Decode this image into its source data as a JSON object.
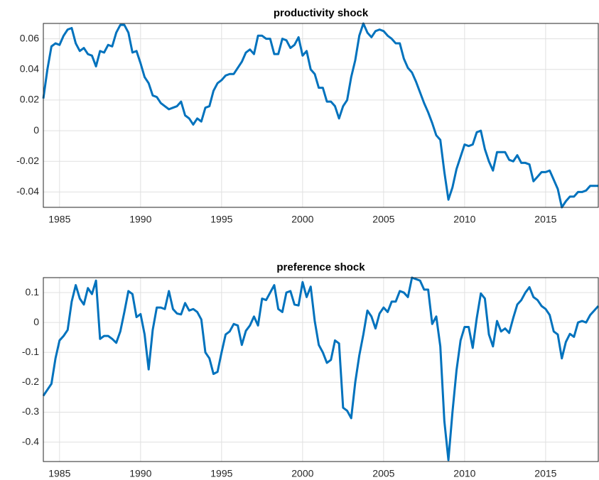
{
  "chart_data": [
    {
      "type": "line",
      "title": "productivity shock",
      "grid": true,
      "xlim": [
        1984,
        2018.25
      ],
      "xticks": [
        1985,
        1990,
        1995,
        2000,
        2005,
        2010,
        2015
      ],
      "ylim": [
        -0.05,
        0.07
      ],
      "yticks": [
        -0.04,
        -0.02,
        0,
        0.02,
        0.04,
        0.06
      ],
      "x": [
        1984,
        1984.25,
        1984.5,
        1984.75,
        1985,
        1985.25,
        1985.5,
        1985.75,
        1986,
        1986.25,
        1986.5,
        1986.75,
        1987,
        1987.25,
        1987.5,
        1987.75,
        1988,
        1988.25,
        1988.5,
        1988.75,
        1989,
        1989.25,
        1989.5,
        1989.75,
        1990,
        1990.25,
        1990.5,
        1990.75,
        1991,
        1991.25,
        1991.5,
        1991.75,
        1992,
        1992.25,
        1992.5,
        1992.75,
        1993,
        1993.25,
        1993.5,
        1993.75,
        1994,
        1994.25,
        1994.5,
        1994.75,
        1995,
        1995.25,
        1995.5,
        1995.75,
        1996,
        1996.25,
        1996.5,
        1996.75,
        1997,
        1997.25,
        1997.5,
        1997.75,
        1998,
        1998.25,
        1998.5,
        1998.75,
        1999,
        1999.25,
        1999.5,
        1999.75,
        2000,
        2000.25,
        2000.5,
        2000.75,
        2001,
        2001.25,
        2001.5,
        2001.75,
        2002,
        2002.25,
        2002.5,
        2002.75,
        2003,
        2003.25,
        2003.5,
        2003.75,
        2004,
        2004.25,
        2004.5,
        2004.75,
        2005,
        2005.25,
        2005.5,
        2005.75,
        2006,
        2006.25,
        2006.5,
        2006.75,
        2007,
        2007.25,
        2007.5,
        2007.75,
        2008,
        2008.25,
        2008.5,
        2008.75,
        2009,
        2009.25,
        2009.5,
        2009.75,
        2010,
        2010.25,
        2010.5,
        2010.75,
        2011,
        2011.25,
        2011.5,
        2011.75,
        2012,
        2012.25,
        2012.5,
        2012.75,
        2013,
        2013.25,
        2013.5,
        2013.75,
        2014,
        2014.25,
        2014.5,
        2014.75,
        2015,
        2015.25,
        2015.5,
        2015.75,
        2016,
        2016.25,
        2016.5,
        2016.75,
        2017,
        2017.25,
        2017.5,
        2017.75,
        2018,
        2018.25
      ],
      "series": [
        {
          "color": "#0072bd",
          "values": [
            0.021,
            0.04,
            0.055,
            0.057,
            0.056,
            0.062,
            0.066,
            0.067,
            0.057,
            0.052,
            0.054,
            0.05,
            0.049,
            0.042,
            0.052,
            0.051,
            0.056,
            0.055,
            0.064,
            0.069,
            0.069,
            0.064,
            0.051,
            0.052,
            0.044,
            0.035,
            0.031,
            0.023,
            0.022,
            0.018,
            0.016,
            0.014,
            0.015,
            0.016,
            0.019,
            0.01,
            0.008,
            0.004,
            0.008,
            0.006,
            0.015,
            0.016,
            0.026,
            0.031,
            0.033,
            0.036,
            0.037,
            0.037,
            0.041,
            0.045,
            0.051,
            0.053,
            0.05,
            0.062,
            0.062,
            0.06,
            0.06,
            0.05,
            0.05,
            0.06,
            0.059,
            0.054,
            0.056,
            0.061,
            0.049,
            0.052,
            0.04,
            0.037,
            0.028,
            0.028,
            0.019,
            0.019,
            0.016,
            0.008,
            0.016,
            0.02,
            0.035,
            0.046,
            0.062,
            0.07,
            0.064,
            0.061,
            0.065,
            0.066,
            0.065,
            0.062,
            0.06,
            0.057,
            0.057,
            0.047,
            0.041,
            0.038,
            0.032,
            0.025,
            0.018,
            0.012,
            0.005,
            -0.003,
            -0.006,
            -0.027,
            -0.045,
            -0.037,
            -0.025,
            -0.017,
            -0.009,
            -0.01,
            -0.009,
            -0.001,
            0.0,
            -0.012,
            -0.02,
            -0.026,
            -0.014,
            -0.014,
            -0.014,
            -0.019,
            -0.02,
            -0.016,
            -0.021,
            -0.021,
            -0.022,
            -0.033,
            -0.03,
            -0.027,
            -0.027,
            -0.026,
            -0.032,
            -0.038,
            -0.05,
            -0.046,
            -0.043,
            -0.043,
            -0.04,
            -0.04,
            -0.039,
            -0.036,
            -0.036,
            -0.036
          ]
        }
      ]
    },
    {
      "type": "line",
      "title": "preference shock",
      "grid": true,
      "xlim": [
        1984,
        2018.25
      ],
      "xticks": [
        1985,
        1990,
        1995,
        2000,
        2005,
        2010,
        2015
      ],
      "ylim": [
        -0.465,
        0.15
      ],
      "yticks": [
        -0.4,
        -0.3,
        -0.2,
        -0.1,
        0,
        0.1
      ],
      "x": [
        1984,
        1984.25,
        1984.5,
        1984.75,
        1985,
        1985.25,
        1985.5,
        1985.75,
        1986,
        1986.25,
        1986.5,
        1986.75,
        1987,
        1987.25,
        1987.5,
        1987.75,
        1988,
        1988.25,
        1988.5,
        1988.75,
        1989,
        1989.25,
        1989.5,
        1989.75,
        1990,
        1990.25,
        1990.5,
        1990.75,
        1991,
        1991.25,
        1991.5,
        1991.75,
        1992,
        1992.25,
        1992.5,
        1992.75,
        1993,
        1993.25,
        1993.5,
        1993.75,
        1994,
        1994.25,
        1994.5,
        1994.75,
        1995,
        1995.25,
        1995.5,
        1995.75,
        1996,
        1996.25,
        1996.5,
        1996.75,
        1997,
        1997.25,
        1997.5,
        1997.75,
        1998,
        1998.25,
        1998.5,
        1998.75,
        1999,
        1999.25,
        1999.5,
        1999.75,
        2000,
        2000.25,
        2000.5,
        2000.75,
        2001,
        2001.25,
        2001.5,
        2001.75,
        2002,
        2002.25,
        2002.5,
        2002.75,
        2003,
        2003.25,
        2003.5,
        2003.75,
        2004,
        2004.25,
        2004.5,
        2004.75,
        2005,
        2005.25,
        2005.5,
        2005.75,
        2006,
        2006.25,
        2006.5,
        2006.75,
        2007,
        2007.25,
        2007.5,
        2007.75,
        2008,
        2008.25,
        2008.5,
        2008.75,
        2009,
        2009.25,
        2009.5,
        2009.75,
        2010,
        2010.25,
        2010.5,
        2010.75,
        2011,
        2011.25,
        2011.5,
        2011.75,
        2012,
        2012.25,
        2012.5,
        2012.75,
        2013,
        2013.25,
        2013.5,
        2013.75,
        2014,
        2014.25,
        2014.5,
        2014.75,
        2015,
        2015.25,
        2015.5,
        2015.75,
        2016,
        2016.25,
        2016.5,
        2016.75,
        2017,
        2017.25,
        2017.5,
        2017.75,
        2018,
        2018.25
      ],
      "series": [
        {
          "color": "#0072bd",
          "values": [
            -0.245,
            -0.225,
            -0.205,
            -0.12,
            -0.06,
            -0.045,
            -0.025,
            0.07,
            0.125,
            0.08,
            0.06,
            0.115,
            0.095,
            0.14,
            -0.055,
            -0.045,
            -0.045,
            -0.055,
            -0.068,
            -0.03,
            0.035,
            0.105,
            0.095,
            0.018,
            0.028,
            -0.04,
            -0.157,
            -0.025,
            0.05,
            0.05,
            0.045,
            0.105,
            0.045,
            0.03,
            0.027,
            0.065,
            0.04,
            0.045,
            0.035,
            0.01,
            -0.1,
            -0.12,
            -0.172,
            -0.165,
            -0.1,
            -0.04,
            -0.03,
            -0.005,
            -0.01,
            -0.075,
            -0.028,
            -0.01,
            0.02,
            -0.01,
            0.08,
            0.075,
            0.1,
            0.125,
            0.045,
            0.035,
            0.1,
            0.105,
            0.06,
            0.057,
            0.135,
            0.085,
            0.12,
            0.005,
            -0.075,
            -0.1,
            -0.135,
            -0.125,
            -0.06,
            -0.07,
            -0.285,
            -0.295,
            -0.32,
            -0.2,
            -0.11,
            -0.04,
            0.04,
            0.02,
            -0.02,
            0.03,
            0.05,
            0.035,
            0.07,
            0.07,
            0.105,
            0.1,
            0.085,
            0.15,
            0.145,
            0.14,
            0.11,
            0.11,
            -0.005,
            0.02,
            -0.08,
            -0.33,
            -0.46,
            -0.3,
            -0.16,
            -0.06,
            -0.015,
            -0.015,
            -0.085,
            0.015,
            0.097,
            0.08,
            -0.04,
            -0.08,
            0.005,
            -0.03,
            -0.02,
            -0.035,
            0.015,
            0.06,
            0.075,
            0.1,
            0.118,
            0.085,
            0.075,
            0.055,
            0.045,
            0.025,
            -0.03,
            -0.04,
            -0.12,
            -0.065,
            -0.038,
            -0.048,
            0.0,
            0.005,
            0.0,
            0.025,
            0.04,
            0.055
          ]
        }
      ]
    }
  ]
}
